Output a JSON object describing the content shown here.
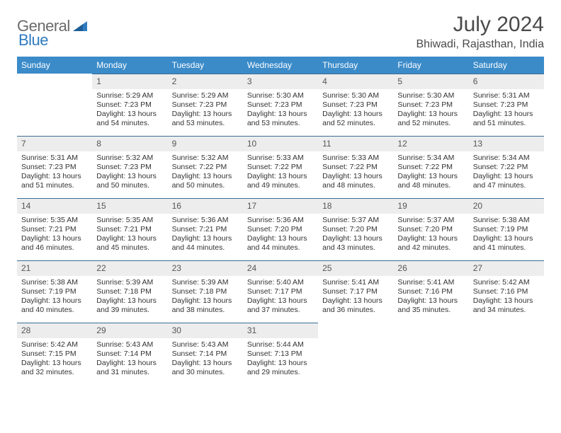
{
  "brand": {
    "part1": "General",
    "part2": "Blue"
  },
  "title": "July 2024",
  "location": "Bhiwadi, Rajasthan, India",
  "theme": {
    "header_bg": "#3b8bc9",
    "header_text": "#ffffff",
    "daynum_bg": "#ededed",
    "cell_border": "#3b6d96",
    "brand_gray": "#6b6b6b",
    "brand_blue": "#2f7abf",
    "text": "#333333",
    "page_bg": "#ffffff"
  },
  "weekdays": [
    "Sunday",
    "Monday",
    "Tuesday",
    "Wednesday",
    "Thursday",
    "Friday",
    "Saturday"
  ],
  "days": {
    "1": {
      "sr": "Sunrise: 5:29 AM",
      "ss": "Sunset: 7:23 PM",
      "dl1": "Daylight: 13 hours",
      "dl2": "and 54 minutes."
    },
    "2": {
      "sr": "Sunrise: 5:29 AM",
      "ss": "Sunset: 7:23 PM",
      "dl1": "Daylight: 13 hours",
      "dl2": "and 53 minutes."
    },
    "3": {
      "sr": "Sunrise: 5:30 AM",
      "ss": "Sunset: 7:23 PM",
      "dl1": "Daylight: 13 hours",
      "dl2": "and 53 minutes."
    },
    "4": {
      "sr": "Sunrise: 5:30 AM",
      "ss": "Sunset: 7:23 PM",
      "dl1": "Daylight: 13 hours",
      "dl2": "and 52 minutes."
    },
    "5": {
      "sr": "Sunrise: 5:30 AM",
      "ss": "Sunset: 7:23 PM",
      "dl1": "Daylight: 13 hours",
      "dl2": "and 52 minutes."
    },
    "6": {
      "sr": "Sunrise: 5:31 AM",
      "ss": "Sunset: 7:23 PM",
      "dl1": "Daylight: 13 hours",
      "dl2": "and 51 minutes."
    },
    "7": {
      "sr": "Sunrise: 5:31 AM",
      "ss": "Sunset: 7:23 PM",
      "dl1": "Daylight: 13 hours",
      "dl2": "and 51 minutes."
    },
    "8": {
      "sr": "Sunrise: 5:32 AM",
      "ss": "Sunset: 7:23 PM",
      "dl1": "Daylight: 13 hours",
      "dl2": "and 50 minutes."
    },
    "9": {
      "sr": "Sunrise: 5:32 AM",
      "ss": "Sunset: 7:22 PM",
      "dl1": "Daylight: 13 hours",
      "dl2": "and 50 minutes."
    },
    "10": {
      "sr": "Sunrise: 5:33 AM",
      "ss": "Sunset: 7:22 PM",
      "dl1": "Daylight: 13 hours",
      "dl2": "and 49 minutes."
    },
    "11": {
      "sr": "Sunrise: 5:33 AM",
      "ss": "Sunset: 7:22 PM",
      "dl1": "Daylight: 13 hours",
      "dl2": "and 48 minutes."
    },
    "12": {
      "sr": "Sunrise: 5:34 AM",
      "ss": "Sunset: 7:22 PM",
      "dl1": "Daylight: 13 hours",
      "dl2": "and 48 minutes."
    },
    "13": {
      "sr": "Sunrise: 5:34 AM",
      "ss": "Sunset: 7:22 PM",
      "dl1": "Daylight: 13 hours",
      "dl2": "and 47 minutes."
    },
    "14": {
      "sr": "Sunrise: 5:35 AM",
      "ss": "Sunset: 7:21 PM",
      "dl1": "Daylight: 13 hours",
      "dl2": "and 46 minutes."
    },
    "15": {
      "sr": "Sunrise: 5:35 AM",
      "ss": "Sunset: 7:21 PM",
      "dl1": "Daylight: 13 hours",
      "dl2": "and 45 minutes."
    },
    "16": {
      "sr": "Sunrise: 5:36 AM",
      "ss": "Sunset: 7:21 PM",
      "dl1": "Daylight: 13 hours",
      "dl2": "and 44 minutes."
    },
    "17": {
      "sr": "Sunrise: 5:36 AM",
      "ss": "Sunset: 7:20 PM",
      "dl1": "Daylight: 13 hours",
      "dl2": "and 44 minutes."
    },
    "18": {
      "sr": "Sunrise: 5:37 AM",
      "ss": "Sunset: 7:20 PM",
      "dl1": "Daylight: 13 hours",
      "dl2": "and 43 minutes."
    },
    "19": {
      "sr": "Sunrise: 5:37 AM",
      "ss": "Sunset: 7:20 PM",
      "dl1": "Daylight: 13 hours",
      "dl2": "and 42 minutes."
    },
    "20": {
      "sr": "Sunrise: 5:38 AM",
      "ss": "Sunset: 7:19 PM",
      "dl1": "Daylight: 13 hours",
      "dl2": "and 41 minutes."
    },
    "21": {
      "sr": "Sunrise: 5:38 AM",
      "ss": "Sunset: 7:19 PM",
      "dl1": "Daylight: 13 hours",
      "dl2": "and 40 minutes."
    },
    "22": {
      "sr": "Sunrise: 5:39 AM",
      "ss": "Sunset: 7:18 PM",
      "dl1": "Daylight: 13 hours",
      "dl2": "and 39 minutes."
    },
    "23": {
      "sr": "Sunrise: 5:39 AM",
      "ss": "Sunset: 7:18 PM",
      "dl1": "Daylight: 13 hours",
      "dl2": "and 38 minutes."
    },
    "24": {
      "sr": "Sunrise: 5:40 AM",
      "ss": "Sunset: 7:17 PM",
      "dl1": "Daylight: 13 hours",
      "dl2": "and 37 minutes."
    },
    "25": {
      "sr": "Sunrise: 5:41 AM",
      "ss": "Sunset: 7:17 PM",
      "dl1": "Daylight: 13 hours",
      "dl2": "and 36 minutes."
    },
    "26": {
      "sr": "Sunrise: 5:41 AM",
      "ss": "Sunset: 7:16 PM",
      "dl1": "Daylight: 13 hours",
      "dl2": "and 35 minutes."
    },
    "27": {
      "sr": "Sunrise: 5:42 AM",
      "ss": "Sunset: 7:16 PM",
      "dl1": "Daylight: 13 hours",
      "dl2": "and 34 minutes."
    },
    "28": {
      "sr": "Sunrise: 5:42 AM",
      "ss": "Sunset: 7:15 PM",
      "dl1": "Daylight: 13 hours",
      "dl2": "and 32 minutes."
    },
    "29": {
      "sr": "Sunrise: 5:43 AM",
      "ss": "Sunset: 7:14 PM",
      "dl1": "Daylight: 13 hours",
      "dl2": "and 31 minutes."
    },
    "30": {
      "sr": "Sunrise: 5:43 AM",
      "ss": "Sunset: 7:14 PM",
      "dl1": "Daylight: 13 hours",
      "dl2": "and 30 minutes."
    },
    "31": {
      "sr": "Sunrise: 5:44 AM",
      "ss": "Sunset: 7:13 PM",
      "dl1": "Daylight: 13 hours",
      "dl2": "and 29 minutes."
    }
  },
  "num": {
    "1": "1",
    "2": "2",
    "3": "3",
    "4": "4",
    "5": "5",
    "6": "6",
    "7": "7",
    "8": "8",
    "9": "9",
    "10": "10",
    "11": "11",
    "12": "12",
    "13": "13",
    "14": "14",
    "15": "15",
    "16": "16",
    "17": "17",
    "18": "18",
    "19": "19",
    "20": "20",
    "21": "21",
    "22": "22",
    "23": "23",
    "24": "24",
    "25": "25",
    "26": "26",
    "27": "27",
    "28": "28",
    "29": "29",
    "30": "30",
    "31": "31"
  }
}
